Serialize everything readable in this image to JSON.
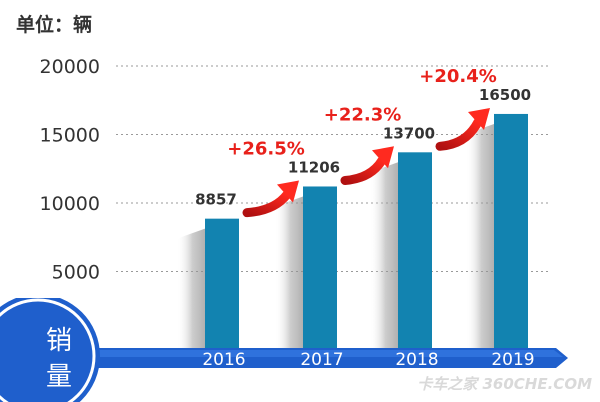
{
  "chart_data": {
    "type": "bar",
    "unit_label": "单位：辆",
    "categories": [
      "2016",
      "2017",
      "2018",
      "2019"
    ],
    "values": [
      8857,
      11206,
      13700,
      16500
    ],
    "value_labels": [
      "8857",
      "11206",
      "13700",
      "16500"
    ],
    "growth": [
      {
        "from": "2016",
        "to": "2017",
        "label": "+26.5%"
      },
      {
        "from": "2017",
        "to": "2018",
        "label": "+22.3%"
      },
      {
        "from": "2018",
        "to": "2019",
        "label": "+20.4%"
      }
    ],
    "ylim": [
      0,
      20000
    ],
    "yticks": [
      5000,
      10000,
      15000,
      20000
    ],
    "ytick_labels": [
      "5000",
      "10000",
      "15000",
      "20000"
    ],
    "grid": true,
    "ylabel": "销量",
    "bar_color": "#1283b0",
    "axis_color": "#1f5fcc",
    "growth_color": "#e8211b",
    "watermark": "卡车之家 360CHE.COM"
  }
}
